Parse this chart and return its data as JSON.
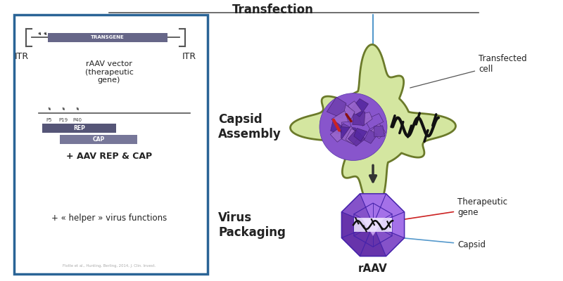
{
  "bg_color": "#ffffff",
  "box_color": "#2a6496",
  "box_fill": "#ffffff",
  "transfection_label": "Transfection",
  "capsid_assembly_label": "Capsid\nAssembly",
  "virus_packaging_label": "Virus\nPackaging",
  "raav_label": "rAAV",
  "itr_left": "ITR",
  "itr_right": "ITR",
  "transgene_label": "TRANSGENE",
  "raav_vector_label": "rAAV vector\n(therapeutic\ngene)",
  "rep_cap_label": "+ AAV REP & CAP",
  "helper_label": "+ « helper » virus functions",
  "p5_label": "P5",
  "p19_label": "P19",
  "p40_label": "P40",
  "rep_label": "REP",
  "cap_label": "CAP",
  "transfected_cell_label": "Transfected\ncell",
  "therapeutic_gene_label": "Therapeutic\ngene",
  "capsid_label": "Capsid",
  "cell_fill": "#d4e6a0",
  "cell_edge": "#6b7a2a",
  "capsid_purple": "#7040a8",
  "arrow_blue": "#5599cc",
  "arrow_dark": "#333333",
  "transgene_color": "#666688",
  "rep_color": "#555577",
  "cap_color": "#777799",
  "line_color": "#555555",
  "label_dark": "#222222",
  "raav_face_light": "#aa88ee",
  "raav_face_dark": "#8855cc",
  "raav_edge": "#5533aa",
  "raav_center_light": "#ccaaff",
  "raav_center_dark": "#9966cc"
}
